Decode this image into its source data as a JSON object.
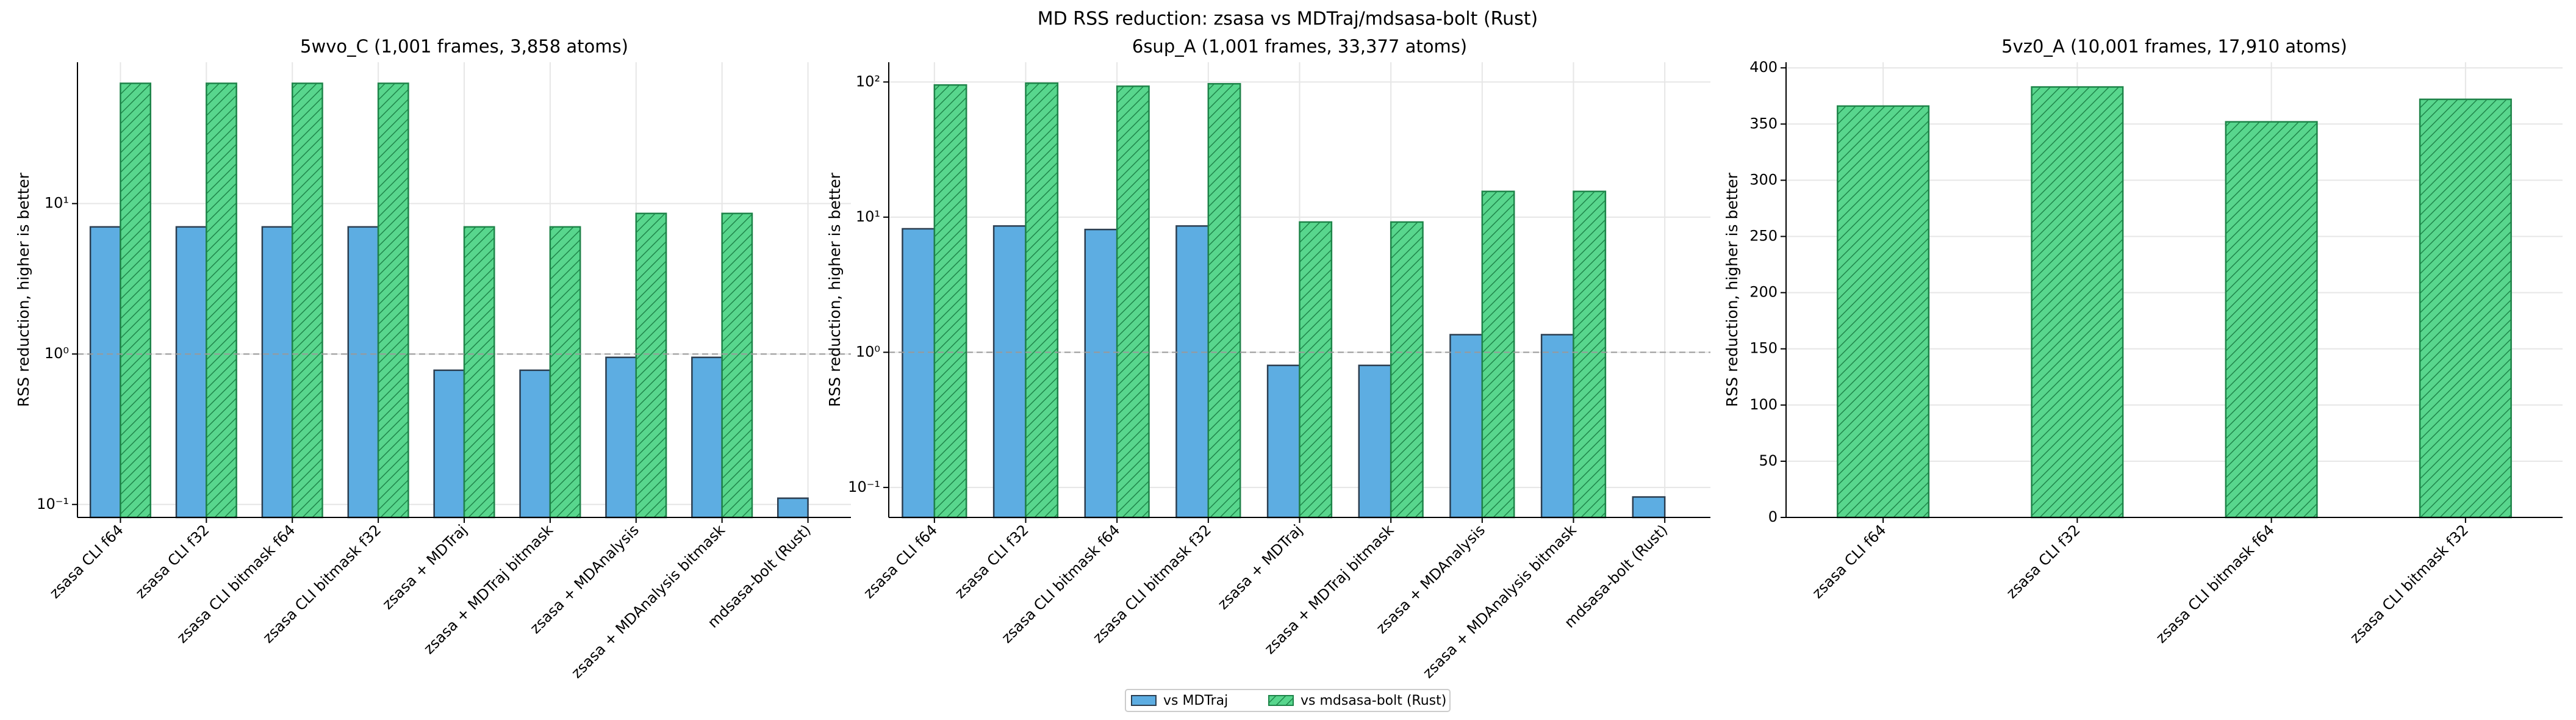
{
  "title": "MD RSS reduction: zsasa vs MDTraj/mdsasa-bolt (Rust)",
  "legend_position": "bottom center",
  "chart_data": [
    {
      "type": "bar",
      "title": "5wvo_C (1,001 frames, 3,858 atoms)",
      "ylabel": "RSS reduction, higher is better",
      "log_scale": true,
      "grid": true,
      "reference_line": 1,
      "categories": [
        "zsasa CLI f64",
        "zsasa CLI f32",
        "zsasa CLI bitmask f64",
        "zsasa CLI bitmask f32",
        "zsasa + MDTraj",
        "zsasa + MDTraj bitmask",
        "zsasa + MDAnalysis",
        "zsasa + MDAnalysis bitmask",
        "mdsasa-bolt (Rust)"
      ],
      "series": [
        {
          "name": "vs MDTraj",
          "color": "#5dade2",
          "values": [
            7.0,
            7.0,
            7.0,
            7.0,
            0.78,
            0.78,
            0.95,
            0.95,
            0.11
          ]
        },
        {
          "name": "vs mdsasa-bolt (Rust)",
          "color": "#58d68d",
          "hatch": true,
          "values": [
            63,
            63,
            63,
            63,
            7.0,
            7.0,
            8.6,
            8.6,
            null
          ]
        }
      ],
      "ylim": [
        0.082,
        87
      ],
      "yticks": [
        {
          "value": 0.1,
          "label": "10⁻¹"
        },
        {
          "value": 1,
          "label": "10⁰"
        },
        {
          "value": 10,
          "label": "10¹"
        }
      ]
    },
    {
      "type": "bar",
      "title": "6sup_A (1,001 frames, 33,377 atoms)",
      "ylabel": "RSS reduction, higher is better",
      "log_scale": true,
      "grid": true,
      "reference_line": 1,
      "categories": [
        "zsasa CLI f64",
        "zsasa CLI f32",
        "zsasa CLI bitmask f64",
        "zsasa CLI bitmask f32",
        "zsasa + MDTraj",
        "zsasa + MDTraj bitmask",
        "zsasa + MDAnalysis",
        "zsasa + MDAnalysis bitmask",
        "mdsasa-bolt (Rust)"
      ],
      "series": [
        {
          "name": "vs MDTraj",
          "color": "#5dade2",
          "values": [
            8.2,
            8.6,
            8.1,
            8.6,
            0.8,
            0.8,
            1.35,
            1.35,
            0.085
          ]
        },
        {
          "name": "vs mdsasa-bolt (Rust)",
          "color": "#58d68d",
          "hatch": true,
          "values": [
            95,
            98,
            93,
            97,
            9.2,
            9.2,
            15.5,
            15.5,
            null
          ]
        }
      ],
      "ylim": [
        0.06,
        140
      ],
      "yticks": [
        {
          "value": 0.1,
          "label": "10⁻¹"
        },
        {
          "value": 1,
          "label": "10⁰"
        },
        {
          "value": 10,
          "label": "10¹"
        },
        {
          "value": 100,
          "label": "10²"
        }
      ]
    },
    {
      "type": "bar",
      "title": "5vz0_A (10,001 frames, 17,910 atoms)",
      "ylabel": "RSS reduction, higher is better",
      "log_scale": false,
      "grid": true,
      "reference_line": 0,
      "categories": [
        "zsasa CLI f64",
        "zsasa CLI f32",
        "zsasa CLI bitmask f64",
        "zsasa CLI bitmask f32"
      ],
      "series": [
        {
          "color": "#58d68d",
          "hatch": true,
          "values": [
            366,
            383,
            352,
            372
          ]
        }
      ],
      "ylim": [
        0,
        405
      ],
      "yticks": [
        0,
        50,
        100,
        150,
        200,
        250,
        300,
        350,
        400
      ]
    }
  ]
}
